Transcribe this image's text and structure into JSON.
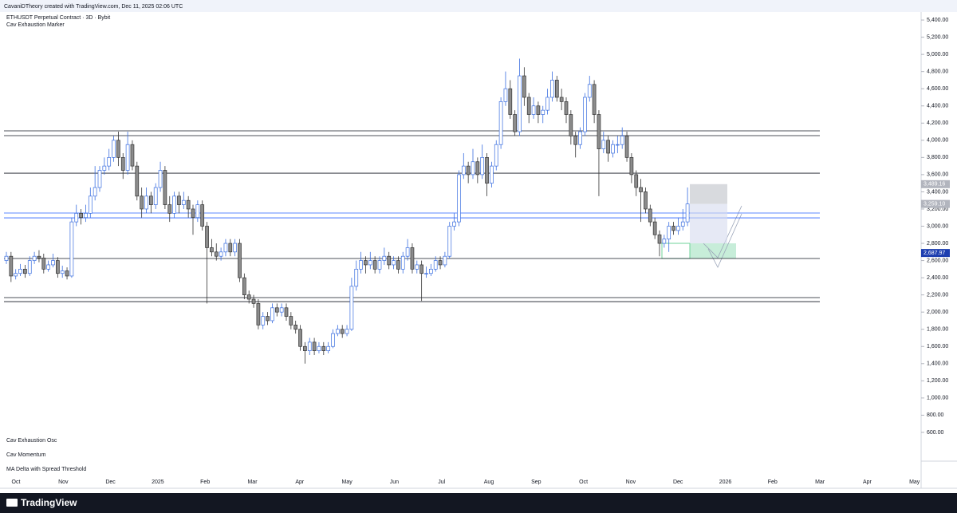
{
  "header": "CavaniDTheory created with TradingView.com, Dec 11, 2025 02:06 UTC",
  "footer": "TradingView",
  "chart_data": {
    "type": "candlestick",
    "title": "ETHUSDT Perpetual Contract · 3D · Bybit",
    "indicators": [
      "Cav Exhaustion Marker",
      "Cav Exhaustion Osc",
      "Cav Momentum",
      "MA Delta with Spread Threshold"
    ],
    "up_color": "#3a6ee0",
    "down_color": "#8c8c8c",
    "ylim": [
      265,
      5540
    ],
    "yticks": [
      {
        "value": 5400,
        "label": "5,400.00"
      },
      {
        "value": 5200,
        "label": "5,200.00"
      },
      {
        "value": 5000,
        "label": "5,000.00"
      },
      {
        "value": 4800,
        "label": "4,800.00"
      },
      {
        "value": 4600,
        "label": "4,600.00"
      },
      {
        "value": 4400,
        "label": "4,400.00"
      },
      {
        "value": 4200,
        "label": "4,200.00"
      },
      {
        "value": 4000,
        "label": "4,000.00"
      },
      {
        "value": 3800,
        "label": "3,800.00"
      },
      {
        "value": 3600,
        "label": "3,600.00"
      },
      {
        "value": 3400,
        "label": "3,400.00"
      },
      {
        "value": 3200,
        "label": "3,200.00"
      },
      {
        "value": 3000,
        "label": "3,000.00"
      },
      {
        "value": 2800,
        "label": "2,800.00"
      },
      {
        "value": 2600,
        "label": "2,600.00"
      },
      {
        "value": 2400,
        "label": "2,400.00"
      },
      {
        "value": 2200,
        "label": "2,200.00"
      },
      {
        "value": 2000,
        "label": "2,000.00"
      },
      {
        "value": 1800,
        "label": "1,800.00"
      },
      {
        "value": 1600,
        "label": "1,600.00"
      },
      {
        "value": 1400,
        "label": "1,400.00"
      },
      {
        "value": 1200,
        "label": "1,200.00"
      },
      {
        "value": 1000,
        "label": "1,000.00"
      },
      {
        "value": 800,
        "label": "800.00"
      },
      {
        "value": 600,
        "label": "600.00"
      }
    ],
    "x_labels": [
      "Oct",
      "Nov",
      "Dec",
      "2025",
      "Feb",
      "Mar",
      "Apr",
      "May",
      "Jun",
      "Jul",
      "Aug",
      "Sep",
      "Oct",
      "Nov",
      "Dec",
      "2026",
      "Feb",
      "Mar",
      "Apr",
      "May"
    ],
    "levels": [
      {
        "value": 4110,
        "color": "#131722"
      },
      {
        "value": 4054,
        "color": "#131722"
      },
      {
        "value": 3617,
        "color": "#131722"
      },
      {
        "value": 3153,
        "color": "#2962ff"
      },
      {
        "value": 3097,
        "color": "#2962ff"
      },
      {
        "value": 2624,
        "color": "#131722"
      },
      {
        "value": 2169,
        "color": "#131722"
      },
      {
        "value": 2122,
        "color": "#131722"
      }
    ],
    "price_labels": [
      {
        "value": 3489.16,
        "label": "3,489.16",
        "color": "#b2b5be"
      },
      {
        "value": 3259.1,
        "label": "3,259.10",
        "color": "#b2b5be"
      },
      {
        "value": 2687.97,
        "label": "2,687.97",
        "color": "#1e3fb0"
      }
    ],
    "candles": [
      [
        2600,
        2700,
        2560,
        2650
      ],
      [
        2650,
        2700,
        2350,
        2420
      ],
      [
        2420,
        2500,
        2380,
        2450
      ],
      [
        2450,
        2560,
        2420,
        2500
      ],
      [
        2500,
        2550,
        2400,
        2450
      ],
      [
        2450,
        2650,
        2420,
        2600
      ],
      [
        2600,
        2700,
        2560,
        2650
      ],
      [
        2650,
        2720,
        2580,
        2630
      ],
      [
        2630,
        2680,
        2450,
        2500
      ],
      [
        2500,
        2600,
        2470,
        2550
      ],
      [
        2550,
        2680,
        2520,
        2600
      ],
      [
        2600,
        2640,
        2400,
        2450
      ],
      [
        2450,
        2540,
        2400,
        2480
      ],
      [
        2480,
        2520,
        2380,
        2420
      ],
      [
        2420,
        3100,
        2400,
        3050
      ],
      [
        3050,
        3250,
        3000,
        3150
      ],
      [
        3150,
        3200,
        3020,
        3100
      ],
      [
        3100,
        3250,
        3050,
        3150
      ],
      [
        3150,
        3450,
        3100,
        3350
      ],
      [
        3350,
        3700,
        3300,
        3450
      ],
      [
        3450,
        3700,
        3400,
        3650
      ],
      [
        3650,
        3800,
        3600,
        3700
      ],
      [
        3700,
        3900,
        3650,
        3800
      ],
      [
        3800,
        4050,
        3750,
        4000
      ],
      [
        4000,
        4100,
        3700,
        3800
      ],
      [
        3800,
        3850,
        3550,
        3650
      ],
      [
        3650,
        4100,
        3600,
        3950
      ],
      [
        3950,
        4000,
        3650,
        3700
      ],
      [
        3700,
        3750,
        3300,
        3350
      ],
      [
        3350,
        3450,
        3100,
        3200
      ],
      [
        3200,
        3450,
        3150,
        3350
      ],
      [
        3350,
        3400,
        3150,
        3250
      ],
      [
        3250,
        3500,
        3200,
        3450
      ],
      [
        3450,
        3750,
        3400,
        3650
      ],
      [
        3650,
        3700,
        3200,
        3250
      ],
      [
        3250,
        3350,
        3050,
        3150
      ],
      [
        3150,
        3400,
        3100,
        3350
      ],
      [
        3350,
        3400,
        3150,
        3250
      ],
      [
        3250,
        3400,
        3200,
        3300
      ],
      [
        3300,
        3350,
        3100,
        3200
      ],
      [
        3200,
        3250,
        2900,
        3100
      ],
      [
        3100,
        3300,
        3050,
        3250
      ],
      [
        3250,
        3300,
        2950,
        3000
      ],
      [
        3000,
        3050,
        2100,
        2750
      ],
      [
        2750,
        2850,
        2650,
        2700
      ],
      [
        2700,
        2800,
        2600,
        2650
      ],
      [
        2650,
        2750,
        2600,
        2700
      ],
      [
        2700,
        2850,
        2650,
        2800
      ],
      [
        2800,
        2850,
        2650,
        2700
      ],
      [
        2700,
        2850,
        2650,
        2800
      ],
      [
        2800,
        2850,
        2350,
        2400
      ],
      [
        2400,
        2450,
        2150,
        2200
      ],
      [
        2200,
        2250,
        2100,
        2150
      ],
      [
        2150,
        2200,
        2050,
        2100
      ],
      [
        2100,
        2150,
        1800,
        1850
      ],
      [
        1850,
        2000,
        1800,
        1950
      ],
      [
        1950,
        2000,
        1850,
        1900
      ],
      [
        1900,
        2100,
        1870,
        2050
      ],
      [
        2050,
        2100,
        1950,
        2000
      ],
      [
        2000,
        2100,
        1950,
        2050
      ],
      [
        2050,
        2100,
        1900,
        1950
      ],
      [
        1950,
        2000,
        1800,
        1850
      ],
      [
        1850,
        1900,
        1750,
        1800
      ],
      [
        1800,
        1850,
        1550,
        1600
      ],
      [
        1600,
        1650,
        1400,
        1550
      ],
      [
        1550,
        1700,
        1500,
        1650
      ],
      [
        1650,
        1700,
        1500,
        1550
      ],
      [
        1550,
        1650,
        1520,
        1600
      ],
      [
        1600,
        1650,
        1500,
        1550
      ],
      [
        1550,
        1650,
        1520,
        1600
      ],
      [
        1600,
        1800,
        1580,
        1750
      ],
      [
        1750,
        1850,
        1720,
        1800
      ],
      [
        1800,
        1850,
        1700,
        1750
      ],
      [
        1750,
        1850,
        1720,
        1800
      ],
      [
        1800,
        2400,
        1780,
        2300
      ],
      [
        2300,
        2600,
        2250,
        2500
      ],
      [
        2500,
        2700,
        2450,
        2600
      ],
      [
        2600,
        2650,
        2450,
        2550
      ],
      [
        2550,
        2700,
        2500,
        2600
      ],
      [
        2600,
        2650,
        2450,
        2500
      ],
      [
        2500,
        2650,
        2450,
        2600
      ],
      [
        2600,
        2750,
        2550,
        2650
      ],
      [
        2650,
        2700,
        2500,
        2550
      ],
      [
        2550,
        2650,
        2500,
        2600
      ],
      [
        2600,
        2650,
        2450,
        2500
      ],
      [
        2500,
        2700,
        2450,
        2650
      ],
      [
        2650,
        2850,
        2600,
        2750
      ],
      [
        2750,
        2800,
        2450,
        2500
      ],
      [
        2500,
        2600,
        2450,
        2550
      ],
      [
        2550,
        2600,
        2130,
        2450
      ],
      [
        2450,
        2530,
        2400,
        2450
      ],
      [
        2450,
        2560,
        2420,
        2500
      ],
      [
        2500,
        2650,
        2470,
        2600
      ],
      [
        2600,
        2650,
        2500,
        2550
      ],
      [
        2550,
        2700,
        2520,
        2650
      ],
      [
        2650,
        3050,
        2620,
        3000
      ],
      [
        3000,
        3150,
        2950,
        3050
      ],
      [
        3050,
        3650,
        3000,
        3600
      ],
      [
        3600,
        3850,
        3550,
        3700
      ],
      [
        3700,
        3750,
        3500,
        3600
      ],
      [
        3600,
        3900,
        3550,
        3750
      ],
      [
        3750,
        3800,
        3500,
        3600
      ],
      [
        3600,
        3950,
        3550,
        3800
      ],
      [
        3800,
        3850,
        3350,
        3500
      ],
      [
        3500,
        3750,
        3450,
        3700
      ],
      [
        3700,
        4000,
        3650,
        3950
      ],
      [
        3950,
        4500,
        3900,
        4450
      ],
      [
        4450,
        4800,
        4400,
        4600
      ],
      [
        4600,
        4700,
        4250,
        4300
      ],
      [
        4300,
        4350,
        4050,
        4100
      ],
      [
        4100,
        4950,
        4050,
        4750
      ],
      [
        4750,
        4850,
        4400,
        4500
      ],
      [
        4500,
        4550,
        4200,
        4300
      ],
      [
        4300,
        4500,
        4250,
        4400
      ],
      [
        4400,
        4450,
        4200,
        4300
      ],
      [
        4300,
        4400,
        4200,
        4350
      ],
      [
        4350,
        4600,
        4300,
        4500
      ],
      [
        4500,
        4800,
        4450,
        4700
      ],
      [
        4700,
        4750,
        4450,
        4500
      ],
      [
        4500,
        4600,
        4350,
        4450
      ],
      [
        4450,
        4500,
        4200,
        4300
      ],
      [
        4300,
        4350,
        3950,
        4050
      ],
      [
        4050,
        4100,
        3800,
        3950
      ],
      [
        3950,
        4150,
        3900,
        4100
      ],
      [
        4100,
        4550,
        4050,
        4500
      ],
      [
        4500,
        4750,
        4450,
        4650
      ],
      [
        4650,
        4700,
        4200,
        4300
      ],
      [
        4300,
        4350,
        3350,
        3900
      ],
      [
        3900,
        4100,
        3850,
        4000
      ],
      [
        4000,
        4050,
        3750,
        3850
      ],
      [
        3850,
        4000,
        3800,
        3950
      ],
      [
        3950,
        4050,
        3850,
        3950
      ],
      [
        3950,
        4150,
        3900,
        4050
      ],
      [
        4050,
        4100,
        3750,
        3800
      ],
      [
        3800,
        3850,
        3500,
        3600
      ],
      [
        3600,
        3650,
        3350,
        3450
      ],
      [
        3450,
        3550,
        3050,
        3400
      ],
      [
        3400,
        3450,
        3150,
        3200
      ],
      [
        3200,
        3250,
        3000,
        3050
      ],
      [
        3050,
        3100,
        2850,
        2900
      ],
      [
        2900,
        2950,
        2650,
        2800
      ],
      [
        2800,
        2900,
        2750,
        2850
      ],
      [
        2850,
        3050,
        2700,
        3000
      ],
      [
        3000,
        3050,
        2900,
        2950
      ],
      [
        2950,
        3100,
        2900,
        3000
      ],
      [
        3000,
        3200,
        2950,
        3050
      ],
      [
        3050,
        3450,
        3000,
        3259.1
      ]
    ]
  }
}
